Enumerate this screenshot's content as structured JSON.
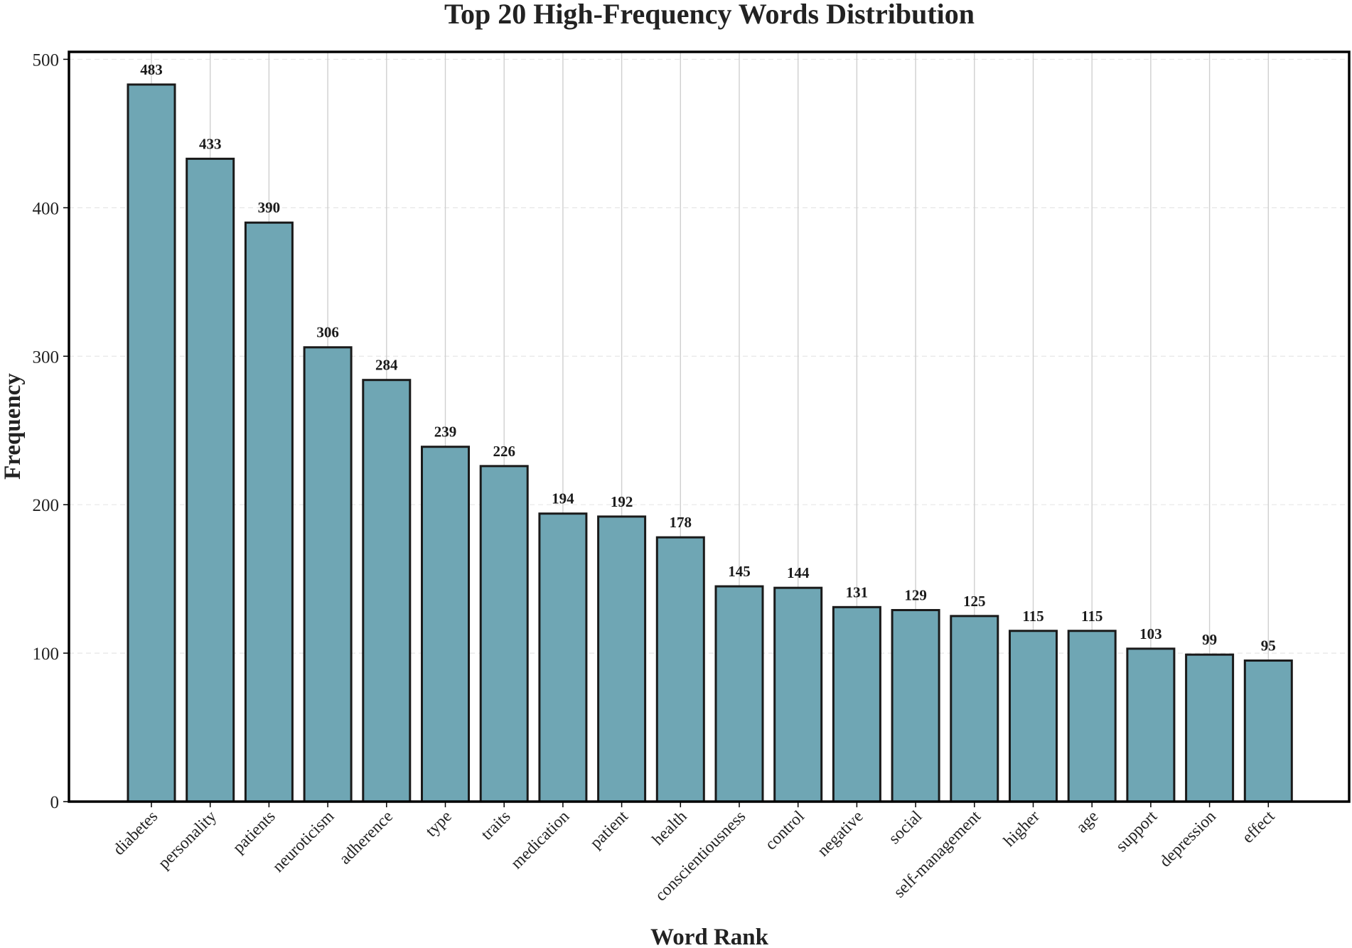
{
  "chart_data": {
    "type": "bar",
    "title": "Top 20 High-Frequency Words Distribution",
    "xlabel": "Word Rank",
    "ylabel": "Frequency",
    "categories": [
      "diabetes",
      "personality",
      "patients",
      "neuroticism",
      "adherence",
      "type",
      "traits",
      "medication",
      "patient",
      "health",
      "conscientiousness",
      "control",
      "negative",
      "social",
      "self-management",
      "higher",
      "age",
      "support",
      "depression",
      "effect"
    ],
    "values": [
      483,
      433,
      390,
      306,
      284,
      239,
      226,
      194,
      192,
      178,
      145,
      144,
      131,
      129,
      125,
      115,
      115,
      103,
      99,
      95
    ],
    "value_labels": [
      "483",
      "433",
      "390",
      "306",
      "284",
      "239",
      "226",
      "194",
      "192",
      "178",
      "145",
      "144",
      "131",
      "129",
      "125",
      "115",
      "115",
      "103",
      "99",
      "95"
    ],
    "ylim": [
      0,
      505
    ],
    "yticks": [
      0,
      100,
      200,
      300,
      400,
      500
    ],
    "ytick_labels": [
      "0",
      "100",
      "200",
      "300",
      "400",
      "500"
    ],
    "grid": true,
    "legend": "none",
    "colors": {
      "bar_fill": "#6fa6b4",
      "bar_edge": "#1a1a1a",
      "frame": "#000000"
    }
  }
}
